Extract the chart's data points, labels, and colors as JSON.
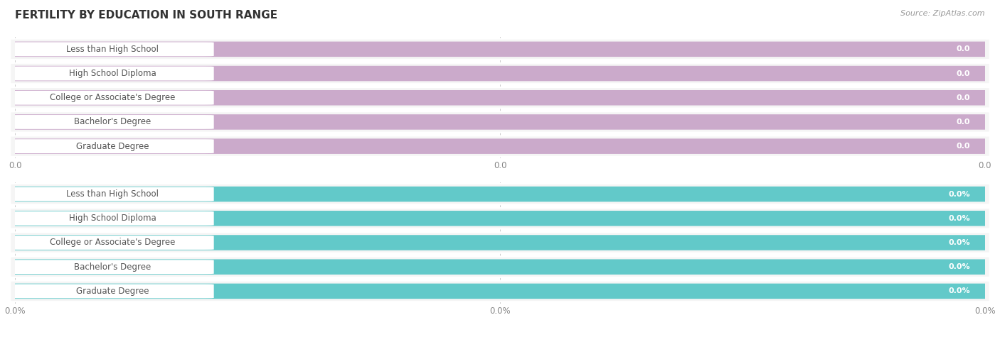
{
  "title": "FERTILITY BY EDUCATION IN SOUTH RANGE",
  "source": "Source: ZipAtlas.com",
  "categories": [
    "Less than High School",
    "High School Diploma",
    "College or Associate's Degree",
    "Bachelor's Degree",
    "Graduate Degree"
  ],
  "values_top": [
    0.0,
    0.0,
    0.0,
    0.0,
    0.0
  ],
  "values_bottom": [
    0.0,
    0.0,
    0.0,
    0.0,
    0.0
  ],
  "labels_top": [
    "0.0",
    "0.0",
    "0.0",
    "0.0",
    "0.0"
  ],
  "labels_bottom": [
    "0.0%",
    "0.0%",
    "0.0%",
    "0.0%",
    "0.0%"
  ],
  "bar_color_top": "#cbaacb",
  "bar_color_bottom": "#62c9c9",
  "bar_bg_color": "#ebebeb",
  "row_bg_color": "#f5f5f5",
  "white_pill_color": "#ffffff",
  "tick_labels_top": [
    "0.0",
    "0.0",
    "0.0"
  ],
  "tick_labels_bottom": [
    "0.0%",
    "0.0%",
    "0.0%"
  ],
  "background_color": "#ffffff",
  "title_color": "#333333",
  "title_fontsize": 11,
  "source_fontsize": 8,
  "cat_label_fontsize": 8.5,
  "val_label_fontsize": 8,
  "tick_fontsize": 8.5,
  "grid_color": "#cccccc",
  "text_color_dark": "#555555",
  "val_text_color": "#888888"
}
